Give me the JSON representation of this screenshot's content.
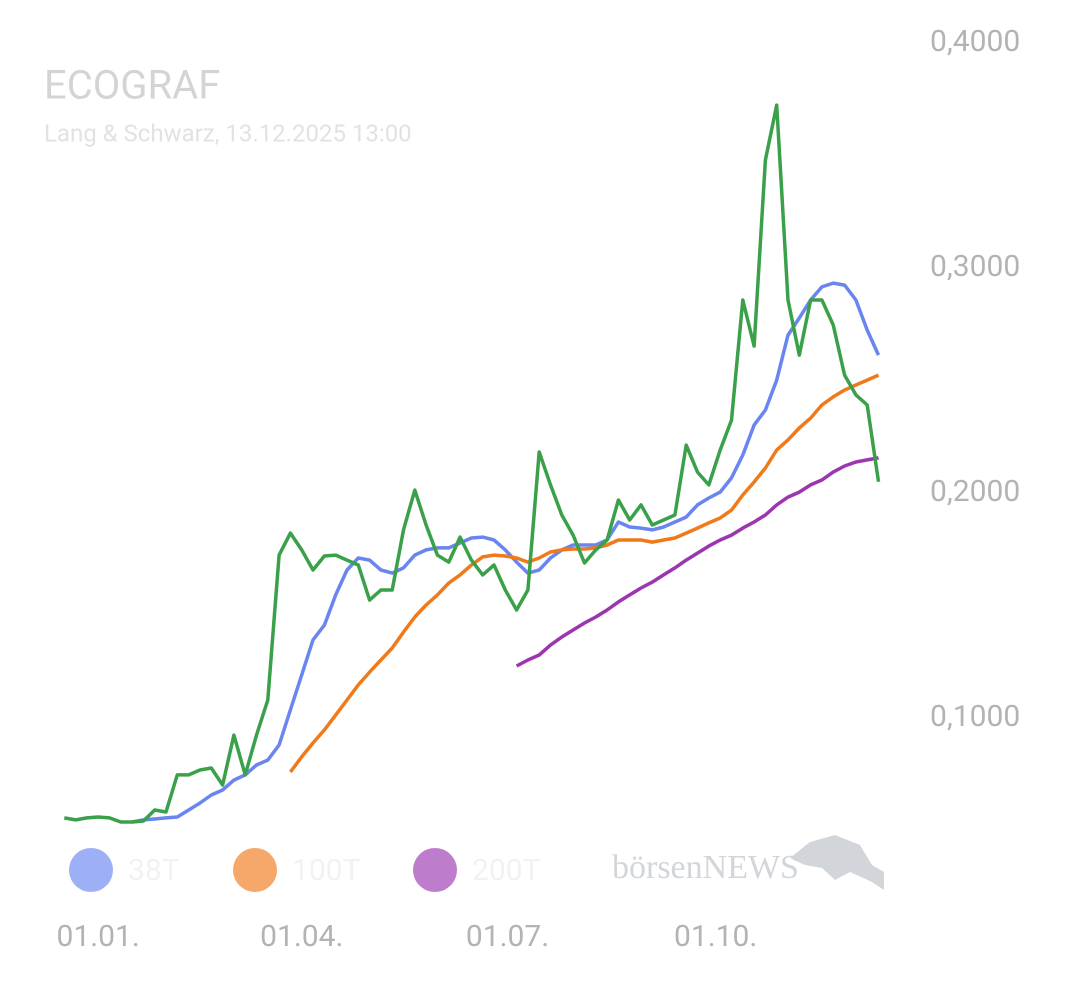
{
  "chart_data": {
    "type": "line",
    "title": "ECOGRAF",
    "subtitle": "Lang & Schwarz, 13.12.2025 13:00",
    "watermark": "börsenNEWS",
    "x": [
      -15,
      -10,
      -5,
      0,
      5,
      10,
      15,
      20,
      25,
      30,
      35,
      40,
      45,
      50,
      55,
      60,
      65,
      70,
      75,
      80,
      85,
      90,
      95,
      100,
      105,
      110,
      115,
      120,
      125,
      130,
      135,
      140,
      145,
      150,
      155,
      160,
      165,
      170,
      175,
      180,
      185,
      190,
      195,
      200,
      205,
      210,
      215,
      220,
      225,
      230,
      235,
      240,
      245,
      250,
      255,
      260,
      265,
      270,
      275,
      280,
      285,
      290,
      295,
      300,
      305,
      310,
      315,
      320,
      325,
      330,
      335,
      340,
      345
    ],
    "xlim": [
      -16,
      347
    ],
    "xticks": [
      {
        "value": 0,
        "label": "01.01."
      },
      {
        "value": 90,
        "label": "01.04."
      },
      {
        "value": 181,
        "label": "01.07."
      },
      {
        "value": 273,
        "label": "01.10."
      }
    ],
    "ylim": [
      0.05,
      0.4
    ],
    "yticks": [
      {
        "value": 0.1,
        "label": "0,1000"
      },
      {
        "value": 0.2,
        "label": "0,2000"
      },
      {
        "value": 0.3,
        "label": "0,3000"
      },
      {
        "value": 0.4,
        "label": "0,4000"
      }
    ],
    "grid": false,
    "series": [
      {
        "name": "38T",
        "color": "#6a85ef",
        "values": [
          null,
          null,
          null,
          null,
          null,
          null,
          0.0538,
          0.0547,
          0.0551,
          0.0556,
          0.056,
          0.0591,
          0.0622,
          0.0658,
          0.068,
          0.0724,
          0.0747,
          0.0791,
          0.0813,
          0.088,
          0.1036,
          0.1191,
          0.1347,
          0.1413,
          0.1547,
          0.1658,
          0.1711,
          0.1702,
          0.1658,
          0.1644,
          0.1667,
          0.1724,
          0.1747,
          0.1756,
          0.1756,
          0.1778,
          0.18,
          0.1804,
          0.1791,
          0.1747,
          0.1693,
          0.1644,
          0.1658,
          0.1711,
          0.1747,
          0.1769,
          0.1769,
          0.1769,
          0.1791,
          0.1871,
          0.1849,
          0.1844,
          0.1836,
          0.1849,
          0.1871,
          0.1893,
          0.1947,
          0.1978,
          0.2004,
          0.2067,
          0.2169,
          0.2302,
          0.2369,
          0.2502,
          0.2702,
          0.2778,
          0.2858,
          0.2916,
          0.2933,
          0.2924,
          0.2858,
          0.2724,
          0.2613
        ]
      },
      {
        "name": "100T",
        "color": "#f07a1a",
        "values": [
          null,
          null,
          null,
          null,
          null,
          null,
          null,
          null,
          null,
          null,
          null,
          null,
          null,
          null,
          null,
          null,
          null,
          null,
          null,
          null,
          0.076,
          0.0827,
          0.0889,
          0.0947,
          0.1013,
          0.108,
          0.1147,
          0.1204,
          0.1258,
          0.1311,
          0.1382,
          0.1449,
          0.1502,
          0.1547,
          0.16,
          0.1636,
          0.168,
          0.1716,
          0.1724,
          0.172,
          0.1711,
          0.1693,
          0.1711,
          0.1738,
          0.1747,
          0.1751,
          0.1751,
          0.1756,
          0.1769,
          0.1791,
          0.1791,
          0.1791,
          0.1782,
          0.1791,
          0.18,
          0.1822,
          0.1844,
          0.1867,
          0.1889,
          0.1924,
          0.1991,
          0.2049,
          0.2111,
          0.2191,
          0.2236,
          0.2289,
          0.2333,
          0.2391,
          0.2427,
          0.2458,
          0.248,
          0.2502,
          0.2524
        ]
      },
      {
        "name": "200T",
        "color": "#9b35b0",
        "values": [
          null,
          null,
          null,
          null,
          null,
          null,
          null,
          null,
          null,
          null,
          null,
          null,
          null,
          null,
          null,
          null,
          null,
          null,
          null,
          null,
          null,
          null,
          null,
          null,
          null,
          null,
          null,
          null,
          null,
          null,
          null,
          null,
          null,
          null,
          null,
          null,
          null,
          null,
          null,
          null,
          0.1231,
          0.1258,
          0.128,
          0.1324,
          0.136,
          0.1391,
          0.1422,
          0.1449,
          0.148,
          0.1516,
          0.1547,
          0.1578,
          0.1604,
          0.1636,
          0.1667,
          0.1702,
          0.1733,
          0.1764,
          0.1791,
          0.1813,
          0.1844,
          0.1871,
          0.1902,
          0.1947,
          0.1982,
          0.2004,
          0.2036,
          0.2058,
          0.2093,
          0.212,
          0.2138,
          0.2147,
          0.2156
        ]
      },
      {
        "color": "#3aa14a",
        "values": [
          0.0556,
          0.0547,
          0.0556,
          0.056,
          0.0556,
          0.0538,
          0.0538,
          0.0542,
          0.0591,
          0.0582,
          0.0747,
          0.0747,
          0.0769,
          0.0778,
          0.0702,
          0.0924,
          0.0747,
          0.0924,
          0.108,
          0.1724,
          0.1822,
          0.1747,
          0.1658,
          0.172,
          0.1724,
          0.1702,
          0.168,
          0.1524,
          0.1569,
          0.1569,
          0.1836,
          0.2013,
          0.1858,
          0.1724,
          0.1693,
          0.1804,
          0.1702,
          0.1636,
          0.168,
          0.1569,
          0.148,
          0.1569,
          0.2182,
          0.2036,
          0.1902,
          0.1813,
          0.1689,
          0.1747,
          0.1791,
          0.1969,
          0.188,
          0.1947,
          0.1858,
          0.188,
          0.1902,
          0.2213,
          0.2093,
          0.2036,
          0.2191,
          0.2324,
          0.2858,
          0.2653,
          0.348,
          0.3724,
          0.2858,
          0.2613,
          0.2858,
          0.2858,
          0.2747,
          0.2524,
          0.2436,
          0.2391,
          0.205
        ]
      }
    ]
  }
}
